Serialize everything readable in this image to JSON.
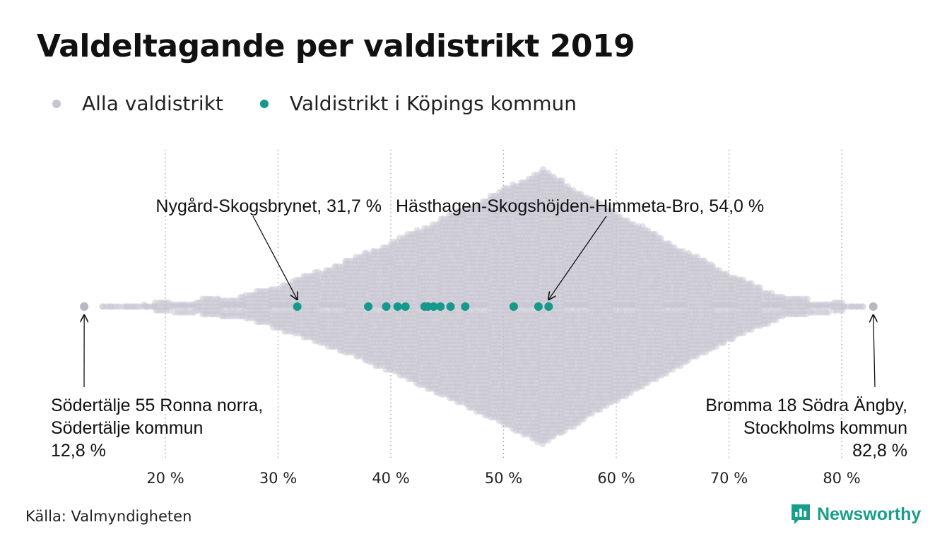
{
  "title": "Valdeltagande per valdistrikt 2019",
  "legend": {
    "all_label": "Alla valdistrikt",
    "local_label": "Valdistrikt i Köpings kommun"
  },
  "colors": {
    "all": "#c7c5d2",
    "local": "#14998a",
    "grid": "#9a9a9a",
    "brand": "#1a9e8a"
  },
  "source": "Källa: Valmyndigheten",
  "brand": {
    "name": "Newsworthy",
    "icon": "bar-chart-speech-bubble-icon"
  },
  "chart_data": {
    "type": "beeswarm",
    "x_unit": "%",
    "xlim": [
      10,
      86
    ],
    "x_ticks": [
      20,
      30,
      40,
      50,
      60,
      70,
      80
    ],
    "x_tick_labels": [
      "20 %",
      "30 %",
      "40 %",
      "50 %",
      "60 %",
      "70 %",
      "80 %"
    ],
    "grid": "vertical dotted",
    "all_districts": {
      "name": "Alla valdistrikt",
      "min": 12.8,
      "max": 82.8,
      "peak": 53.5,
      "note": "distribution shown as dense swarm of grey points"
    },
    "kopings_districts": {
      "name": "Valdistrikt i Köpings kommun",
      "values": [
        31.7,
        38.0,
        39.6,
        40.6,
        41.3,
        43.0,
        43.3,
        43.8,
        44.4,
        45.3,
        46.6,
        50.9,
        53.1,
        54.0
      ]
    },
    "annotations": [
      {
        "id": "nygard",
        "value": 31.7,
        "series": "local",
        "lines": [
          "Nygård-Skogsbrynet, 31,7 %"
        ]
      },
      {
        "id": "hasthagen",
        "value": 54.0,
        "series": "local",
        "lines": [
          "Hästhagen-Skogshöjden-Himmeta-Bro, 54,0 %"
        ]
      },
      {
        "id": "sodertalje",
        "value": 12.8,
        "series": "all",
        "lines": [
          "Södertälje 55 Ronna norra,",
          "Södertälje kommun",
          "12,8 %"
        ]
      },
      {
        "id": "bromma",
        "value": 82.8,
        "series": "all",
        "lines": [
          "Bromma 18 Södra Ängby,",
          "Stockholms kommun",
          "82,8 %"
        ]
      }
    ]
  }
}
